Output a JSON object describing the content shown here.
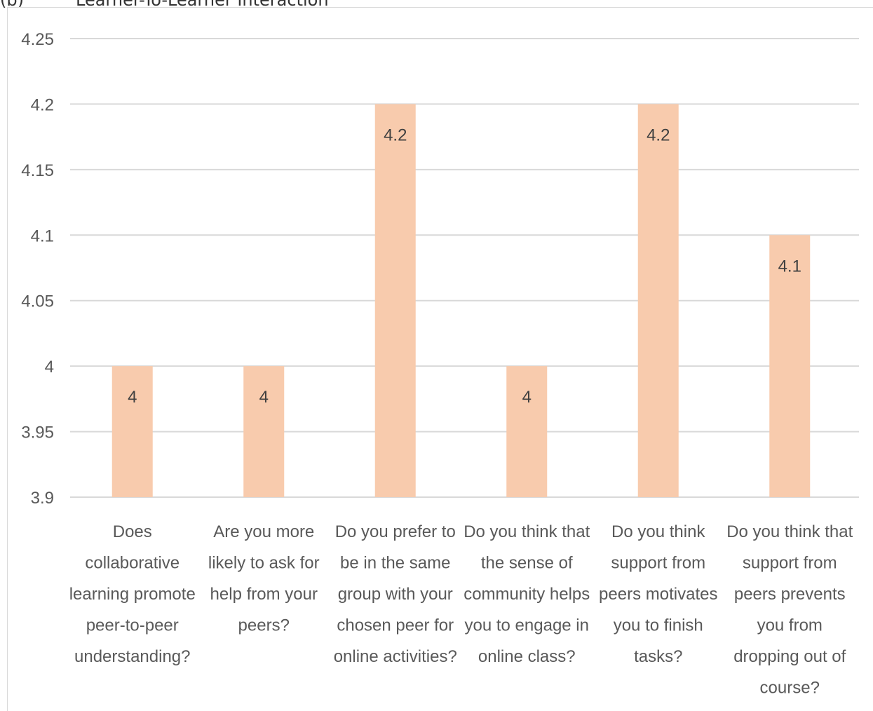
{
  "heading": {
    "prefix": "(b)",
    "title": "Learner-To-Learner Interaction"
  },
  "chart_data": {
    "type": "bar",
    "title": "Learner-To-Learner Interaction",
    "categories": [
      [
        "Does",
        "collaborative",
        "learning promote",
        "peer-to-peer",
        "understanding?"
      ],
      [
        "Are you more",
        "likely to ask for",
        "help from your",
        "peers?"
      ],
      [
        "Do you prefer to",
        "be in the same",
        "group with your",
        "chosen peer for",
        "online activities?"
      ],
      [
        "Do you think that",
        "the sense of",
        "community helps",
        "you to engage in",
        "online class?"
      ],
      [
        "Do you think",
        "support from",
        "peers motivates",
        "you to finish",
        "tasks?"
      ],
      [
        "Do you think that",
        "support from",
        "peers prevents",
        "you from",
        "dropping out of",
        "course?"
      ]
    ],
    "values": [
      4,
      4,
      4.2,
      4,
      4.2,
      4.1
    ],
    "data_labels": [
      "4",
      "4",
      "4.2",
      "4",
      "4.2",
      "4.1"
    ],
    "ylim": [
      3.9,
      4.25
    ],
    "yticks": [
      "4.25",
      "4.2",
      "4.15",
      "4.1",
      "4.05",
      "4",
      "3.95",
      "3.9"
    ],
    "grid": true,
    "bar_color": "#f8cbad",
    "grid_color": "#d9d9d9",
    "xlabel": "",
    "ylabel": ""
  }
}
